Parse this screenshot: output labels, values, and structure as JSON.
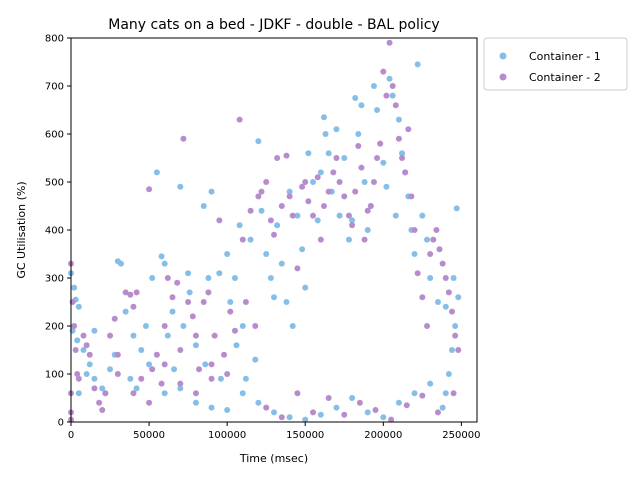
{
  "chart_data": {
    "type": "scatter",
    "title": "Many cats on a bed - JDKF - double -  BAL policy",
    "xlabel": "Time (msec)",
    "ylabel": "GC Utilisation (%)",
    "xlim": [
      0,
      260000
    ],
    "ylim": [
      0,
      800
    ],
    "x_ticks": [
      0,
      50000,
      100000,
      150000,
      200000,
      250000
    ],
    "y_ticks": [
      0,
      100,
      200,
      300,
      400,
      500,
      600,
      700,
      800
    ],
    "grid": false,
    "legend_position": "outside-top-right",
    "series": [
      {
        "name": "Container - 1",
        "color": "#85bfe8",
        "points": [
          [
            0,
            310
          ],
          [
            2000,
            280
          ],
          [
            3000,
            255
          ],
          [
            5000,
            240
          ],
          [
            1000,
            190
          ],
          [
            4000,
            170
          ],
          [
            8000,
            150
          ],
          [
            12000,
            120
          ],
          [
            15000,
            90
          ],
          [
            20000,
            70
          ],
          [
            25000,
            110
          ],
          [
            28000,
            140
          ],
          [
            30000,
            335
          ],
          [
            32000,
            330
          ],
          [
            35000,
            230
          ],
          [
            40000,
            180
          ],
          [
            45000,
            150
          ],
          [
            50000,
            120
          ],
          [
            52000,
            300
          ],
          [
            55000,
            520
          ],
          [
            58000,
            345
          ],
          [
            60000,
            330
          ],
          [
            62000,
            180
          ],
          [
            65000,
            230
          ],
          [
            70000,
            490
          ],
          [
            72000,
            200
          ],
          [
            75000,
            310
          ],
          [
            80000,
            160
          ],
          [
            85000,
            450
          ],
          [
            88000,
            300
          ],
          [
            90000,
            480
          ],
          [
            95000,
            310
          ],
          [
            100000,
            350
          ],
          [
            102000,
            250
          ],
          [
            105000,
            300
          ],
          [
            108000,
            410
          ],
          [
            110000,
            200
          ],
          [
            112000,
            90
          ],
          [
            115000,
            380
          ],
          [
            118000,
            130
          ],
          [
            120000,
            585
          ],
          [
            122000,
            440
          ],
          [
            125000,
            350
          ],
          [
            128000,
            300
          ],
          [
            130000,
            260
          ],
          [
            132000,
            410
          ],
          [
            135000,
            330
          ],
          [
            138000,
            250
          ],
          [
            140000,
            480
          ],
          [
            142000,
            200
          ],
          [
            145000,
            430
          ],
          [
            148000,
            360
          ],
          [
            150000,
            280
          ],
          [
            152000,
            560
          ],
          [
            155000,
            500
          ],
          [
            158000,
            420
          ],
          [
            160000,
            520
          ],
          [
            162000,
            635
          ],
          [
            163000,
            600
          ],
          [
            165000,
            560
          ],
          [
            167000,
            480
          ],
          [
            170000,
            610
          ],
          [
            172000,
            430
          ],
          [
            175000,
            550
          ],
          [
            178000,
            380
          ],
          [
            180000,
            420
          ],
          [
            182000,
            675
          ],
          [
            184000,
            600
          ],
          [
            186000,
            660
          ],
          [
            188000,
            500
          ],
          [
            190000,
            400
          ],
          [
            192000,
            450
          ],
          [
            194000,
            700
          ],
          [
            196000,
            650
          ],
          [
            198000,
            580
          ],
          [
            200000,
            540
          ],
          [
            202000,
            490
          ],
          [
            204000,
            715
          ],
          [
            206000,
            680
          ],
          [
            208000,
            430
          ],
          [
            210000,
            630
          ],
          [
            212000,
            560
          ],
          [
            214000,
            520
          ],
          [
            216000,
            470
          ],
          [
            218000,
            400
          ],
          [
            220000,
            350
          ],
          [
            222000,
            745
          ],
          [
            225000,
            430
          ],
          [
            228000,
            380
          ],
          [
            230000,
            300
          ],
          [
            235000,
            250
          ],
          [
            240000,
            240
          ],
          [
            245000,
            300
          ],
          [
            247000,
            445
          ],
          [
            248000,
            260
          ],
          [
            246000,
            200
          ],
          [
            244000,
            150
          ],
          [
            242000,
            100
          ],
          [
            240000,
            60
          ],
          [
            238000,
            30
          ],
          [
            60000,
            60
          ],
          [
            70000,
            70
          ],
          [
            80000,
            40
          ],
          [
            90000,
            30
          ],
          [
            100000,
            25
          ],
          [
            110000,
            60
          ],
          [
            120000,
            40
          ],
          [
            130000,
            20
          ],
          [
            140000,
            10
          ],
          [
            150000,
            5
          ],
          [
            160000,
            15
          ],
          [
            170000,
            30
          ],
          [
            180000,
            50
          ],
          [
            190000,
            20
          ],
          [
            200000,
            10
          ],
          [
            210000,
            40
          ],
          [
            220000,
            60
          ],
          [
            230000,
            80
          ],
          [
            5000,
            60
          ],
          [
            10000,
            100
          ],
          [
            15000,
            190
          ],
          [
            22000,
            60
          ],
          [
            38000,
            90
          ],
          [
            42000,
            70
          ],
          [
            48000,
            200
          ],
          [
            66000,
            110
          ],
          [
            76000,
            270
          ],
          [
            86000,
            120
          ],
          [
            96000,
            90
          ],
          [
            106000,
            160
          ]
        ]
      },
      {
        "name": "Container - 2",
        "color": "#b88ccc",
        "points": [
          [
            0,
            330
          ],
          [
            1000,
            250
          ],
          [
            2000,
            200
          ],
          [
            3000,
            150
          ],
          [
            4000,
            100
          ],
          [
            5000,
            90
          ],
          [
            0,
            60
          ],
          [
            0,
            20
          ],
          [
            0,
            5
          ],
          [
            8000,
            180
          ],
          [
            10000,
            160
          ],
          [
            12000,
            140
          ],
          [
            15000,
            70
          ],
          [
            18000,
            40
          ],
          [
            20000,
            25
          ],
          [
            22000,
            60
          ],
          [
            25000,
            180
          ],
          [
            28000,
            215
          ],
          [
            30000,
            140
          ],
          [
            35000,
            270
          ],
          [
            38000,
            265
          ],
          [
            40000,
            240
          ],
          [
            42000,
            270
          ],
          [
            45000,
            90
          ],
          [
            50000,
            485
          ],
          [
            52000,
            110
          ],
          [
            55000,
            140
          ],
          [
            58000,
            80
          ],
          [
            60000,
            200
          ],
          [
            62000,
            300
          ],
          [
            65000,
            260
          ],
          [
            68000,
            290
          ],
          [
            70000,
            150
          ],
          [
            72000,
            590
          ],
          [
            75000,
            250
          ],
          [
            78000,
            220
          ],
          [
            80000,
            180
          ],
          [
            82000,
            110
          ],
          [
            85000,
            250
          ],
          [
            88000,
            270
          ],
          [
            90000,
            120
          ],
          [
            92000,
            180
          ],
          [
            95000,
            420
          ],
          [
            98000,
            140
          ],
          [
            100000,
            100
          ],
          [
            102000,
            230
          ],
          [
            105000,
            190
          ],
          [
            108000,
            630
          ],
          [
            110000,
            380
          ],
          [
            112000,
            250
          ],
          [
            115000,
            440
          ],
          [
            118000,
            200
          ],
          [
            120000,
            470
          ],
          [
            122000,
            480
          ],
          [
            125000,
            500
          ],
          [
            128000,
            420
          ],
          [
            130000,
            390
          ],
          [
            132000,
            550
          ],
          [
            135000,
            450
          ],
          [
            138000,
            555
          ],
          [
            140000,
            470
          ],
          [
            142000,
            430
          ],
          [
            145000,
            320
          ],
          [
            148000,
            490
          ],
          [
            150000,
            500
          ],
          [
            152000,
            460
          ],
          [
            155000,
            430
          ],
          [
            158000,
            510
          ],
          [
            160000,
            380
          ],
          [
            162000,
            450
          ],
          [
            165000,
            480
          ],
          [
            168000,
            520
          ],
          [
            170000,
            550
          ],
          [
            172000,
            500
          ],
          [
            175000,
            470
          ],
          [
            178000,
            430
          ],
          [
            180000,
            410
          ],
          [
            182000,
            480
          ],
          [
            184000,
            575
          ],
          [
            186000,
            530
          ],
          [
            188000,
            380
          ],
          [
            190000,
            440
          ],
          [
            192000,
            450
          ],
          [
            194000,
            500
          ],
          [
            196000,
            550
          ],
          [
            198000,
            580
          ],
          [
            200000,
            730
          ],
          [
            202000,
            680
          ],
          [
            204000,
            790
          ],
          [
            206000,
            700
          ],
          [
            208000,
            660
          ],
          [
            210000,
            590
          ],
          [
            212000,
            550
          ],
          [
            214000,
            520
          ],
          [
            216000,
            610
          ],
          [
            218000,
            470
          ],
          [
            220000,
            400
          ],
          [
            222000,
            310
          ],
          [
            225000,
            260
          ],
          [
            228000,
            200
          ],
          [
            230000,
            350
          ],
          [
            232000,
            380
          ],
          [
            234000,
            400
          ],
          [
            236000,
            360
          ],
          [
            238000,
            330
          ],
          [
            240000,
            300
          ],
          [
            242000,
            270
          ],
          [
            244000,
            230
          ],
          [
            246000,
            180
          ],
          [
            248000,
            150
          ],
          [
            125000,
            30
          ],
          [
            135000,
            10
          ],
          [
            145000,
            60
          ],
          [
            155000,
            20
          ],
          [
            165000,
            50
          ],
          [
            175000,
            15
          ],
          [
            185000,
            40
          ],
          [
            195000,
            25
          ],
          [
            205000,
            5
          ],
          [
            215000,
            35
          ],
          [
            225000,
            55
          ],
          [
            235000,
            20
          ],
          [
            245000,
            60
          ],
          [
            30000,
            100
          ],
          [
            40000,
            60
          ],
          [
            50000,
            40
          ],
          [
            60000,
            120
          ],
          [
            70000,
            80
          ],
          [
            80000,
            60
          ],
          [
            90000,
            90
          ]
        ]
      }
    ]
  }
}
